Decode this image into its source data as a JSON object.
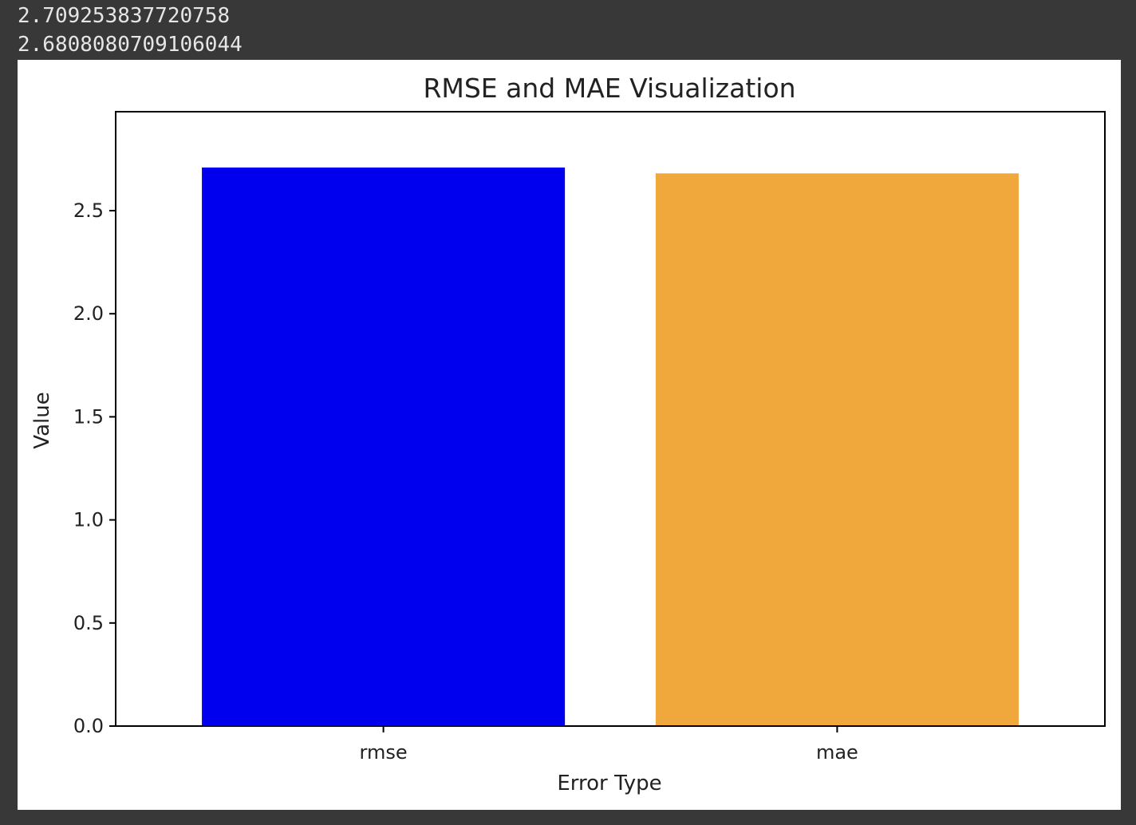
{
  "output": {
    "lines": [
      "2.709253837720758",
      "2.6808080709106044"
    ]
  },
  "chart_data": {
    "type": "bar",
    "title": "RMSE and MAE Visualization",
    "xlabel": "Error Type",
    "ylabel": "Value",
    "categories": [
      "rmse",
      "mae"
    ],
    "values": [
      2.709253837720758,
      2.6808080709106044
    ],
    "colors": [
      "#0000ee",
      "#f0a83c"
    ],
    "ylim": [
      0,
      2.98
    ],
    "yticks": [
      0.0,
      0.5,
      1.0,
      1.5,
      2.0,
      2.5
    ],
    "ytick_labels": [
      "0.0",
      "0.5",
      "1.0",
      "1.5",
      "2.0",
      "2.5"
    ],
    "grid": false,
    "legend": "none"
  }
}
